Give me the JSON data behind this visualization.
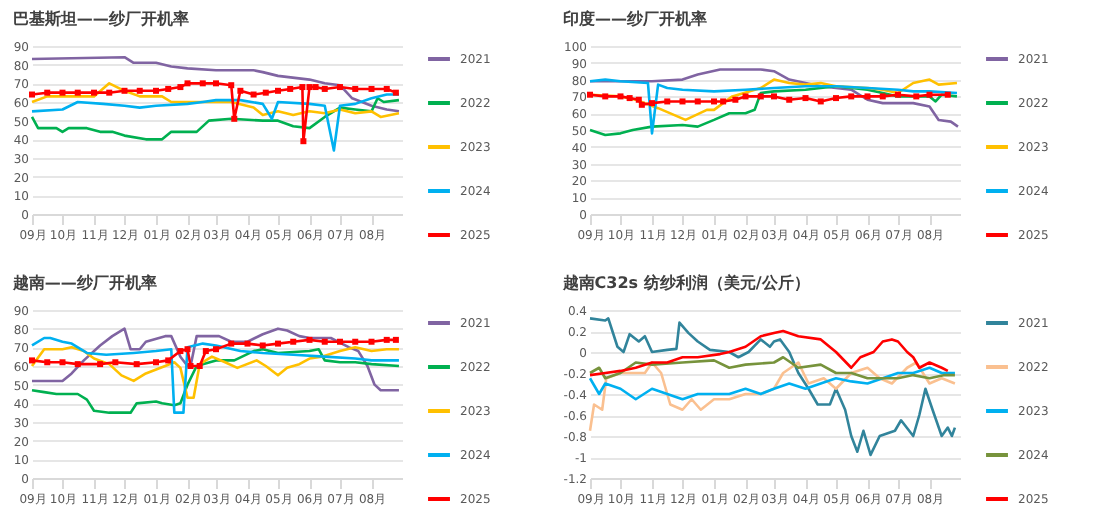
{
  "chart_data": [
    {
      "type": "line",
      "title": "巴基斯坦——纱厂开机率",
      "xlim": [
        "2024-09-01",
        "2025-08-31"
      ],
      "xticks": [
        {
          "value": "2024-09-01",
          "label": "09月"
        },
        {
          "value": "2024-10-01",
          "label": "10月"
        },
        {
          "value": "2024-11-01",
          "label": "11月"
        },
        {
          "value": "2024-12-01",
          "label": "12月"
        },
        {
          "value": "2025-01-01",
          "label": "01月"
        },
        {
          "value": "2025-02-01",
          "label": "02月"
        },
        {
          "value": "2025-03-01",
          "label": "03月"
        },
        {
          "value": "2025-04-01",
          "label": "04月"
        },
        {
          "value": "2025-05-01",
          "label": "05月"
        },
        {
          "value": "2025-06-01",
          "label": "06月"
        },
        {
          "value": "2025-07-01",
          "label": "07月"
        },
        {
          "value": "2025-08-01",
          "label": "08月"
        }
      ],
      "ylim": [
        0,
        90
      ],
      "yticks": [
        0,
        10,
        20,
        30,
        40,
        50,
        60,
        70,
        80,
        90
      ],
      "grid": "y",
      "legend": "right",
      "series": [
        {
          "name": "2021",
          "color": "#8064a2",
          "x": [
            "2024-09-01",
            "2024-12-01",
            "2024-12-10",
            "2025-01-01",
            "2025-01-16",
            "2025-02-01",
            "2025-03-01",
            "2025-04-07",
            "2025-04-16",
            "2025-05-01",
            "2025-06-01",
            "2025-06-16",
            "2025-07-01",
            "2025-07-13",
            "2025-08-01",
            "2025-08-16",
            "2025-08-28"
          ],
          "values": [
            83,
            84,
            81,
            81,
            79,
            78,
            77,
            77,
            76,
            74,
            72,
            70,
            69,
            62,
            58,
            56,
            55
          ]
        },
        {
          "name": "2022",
          "color": "#00b050",
          "x": [
            "2024-09-01",
            "2024-09-07",
            "2024-09-25",
            "2024-10-01",
            "2024-10-07",
            "2024-10-25",
            "2024-11-07",
            "2024-11-19",
            "2024-12-01",
            "2024-12-22",
            "2025-01-07",
            "2025-01-16",
            "2025-02-10",
            "2025-02-22",
            "2025-03-16",
            "2025-04-16",
            "2025-05-01",
            "2025-05-16",
            "2025-06-01",
            "2025-06-16",
            "2025-07-01",
            "2025-07-16",
            "2025-08-01",
            "2025-08-07",
            "2025-08-13",
            "2025-08-28"
          ],
          "values": [
            52,
            46,
            46,
            44,
            46,
            46,
            44,
            44,
            42,
            40,
            40,
            44,
            44,
            50,
            51,
            50,
            50,
            47,
            46,
            52,
            57,
            56,
            55,
            62,
            60,
            61
          ]
        },
        {
          "name": "2023",
          "color": "#ffc000",
          "x": [
            "2024-09-01",
            "2024-09-16",
            "2024-11-01",
            "2024-11-16",
            "2024-12-01",
            "2024-12-16",
            "2025-01-07",
            "2025-01-16",
            "2025-02-16",
            "2025-03-16",
            "2025-04-07",
            "2025-04-16",
            "2025-05-01",
            "2025-05-16",
            "2025-06-01",
            "2025-06-16",
            "2025-07-01",
            "2025-07-16",
            "2025-08-01",
            "2025-08-10",
            "2025-08-28"
          ],
          "values": [
            60,
            63,
            63,
            70,
            66,
            63,
            63,
            60,
            60,
            60,
            57,
            53,
            55,
            53,
            55,
            54,
            56,
            54,
            55,
            52,
            54
          ]
        },
        {
          "name": "2024",
          "color": "#00b0f0",
          "x": [
            "2024-09-01",
            "2024-10-01",
            "2024-10-16",
            "2024-11-10",
            "2024-12-01",
            "2024-12-16",
            "2025-01-01",
            "2025-02-01",
            "2025-02-16",
            "2025-03-01",
            "2025-03-25",
            "2025-04-16",
            "2025-04-25",
            "2025-05-01",
            "2025-06-01",
            "2025-06-16",
            "2025-06-25",
            "2025-07-01",
            "2025-07-16",
            "2025-08-01",
            "2025-08-16",
            "2025-08-28"
          ],
          "values": [
            55,
            56,
            60,
            59,
            58,
            57,
            58,
            59,
            60,
            61,
            61,
            59,
            51,
            60,
            59,
            58,
            34,
            58,
            59,
            62,
            64,
            64
          ]
        },
        {
          "name": "2025",
          "color": "#ff0000",
          "marker": "square",
          "x": [
            "2024-09-01",
            "2024-09-16",
            "2024-10-01",
            "2024-10-16",
            "2024-11-01",
            "2024-11-16",
            "2024-12-01",
            "2024-12-16",
            "2025-01-01",
            "2025-01-13",
            "2025-01-25",
            "2025-02-01",
            "2025-02-16",
            "2025-03-01",
            "2025-03-16",
            "2025-03-19",
            "2025-03-25",
            "2025-04-07",
            "2025-04-19",
            "2025-05-01",
            "2025-05-13",
            "2025-05-25",
            "2025-05-26",
            "2025-06-01",
            "2025-06-07",
            "2025-06-16",
            "2025-07-01",
            "2025-07-16",
            "2025-08-01",
            "2025-08-16",
            "2025-08-25"
          ],
          "values": [
            64,
            65,
            65,
            65,
            65,
            65,
            66,
            66,
            66,
            67,
            68,
            70,
            70,
            70,
            69,
            51,
            66,
            64,
            65,
            66,
            67,
            68,
            39,
            68,
            68,
            67,
            68,
            67,
            67,
            67,
            65
          ]
        }
      ]
    },
    {
      "type": "line",
      "title": "印度——纱厂开机率",
      "xlim": [
        "2024-09-01",
        "2025-08-31"
      ],
      "xticks": [
        {
          "value": "2024-09-01",
          "label": "09月"
        },
        {
          "value": "2024-10-01",
          "label": "10月"
        },
        {
          "value": "2024-11-01",
          "label": "11月"
        },
        {
          "value": "2024-12-01",
          "label": "12月"
        },
        {
          "value": "2025-01-01",
          "label": "01月"
        },
        {
          "value": "2025-02-01",
          "label": "02月"
        },
        {
          "value": "2025-03-01",
          "label": "03月"
        },
        {
          "value": "2025-04-01",
          "label": "04月"
        },
        {
          "value": "2025-05-01",
          "label": "05月"
        },
        {
          "value": "2025-06-01",
          "label": "06月"
        },
        {
          "value": "2025-07-01",
          "label": "07月"
        },
        {
          "value": "2025-08-01",
          "label": "08月"
        }
      ],
      "ylim": [
        0,
        100
      ],
      "yticks": [
        0,
        10,
        20,
        30,
        40,
        50,
        60,
        70,
        80,
        90,
        100
      ],
      "grid": "y",
      "legend": "right",
      "series": [
        {
          "name": "2021",
          "color": "#8064a2",
          "x": [
            "2024-09-01",
            "2024-11-01",
            "2024-12-01",
            "2024-12-16",
            "2025-01-07",
            "2025-02-16",
            "2025-03-01",
            "2025-03-16",
            "2025-04-01",
            "2025-04-16",
            "2025-05-01",
            "2025-05-16",
            "2025-06-01",
            "2025-06-16",
            "2025-07-16",
            "2025-08-01",
            "2025-08-10",
            "2025-08-22",
            "2025-08-29"
          ],
          "values": [
            79,
            79,
            80,
            83,
            86,
            86,
            85,
            80,
            78,
            76,
            75,
            74,
            68,
            66,
            66,
            64,
            56,
            55,
            52
          ]
        },
        {
          "name": "2022",
          "color": "#00b050",
          "x": [
            "2024-09-01",
            "2024-09-16",
            "2024-10-01",
            "2024-10-13",
            "2024-11-01",
            "2024-12-01",
            "2024-12-16",
            "2025-01-01",
            "2025-01-16",
            "2025-02-01",
            "2025-02-10",
            "2025-02-16",
            "2025-03-01",
            "2025-04-01",
            "2025-05-01",
            "2025-06-01",
            "2025-06-16",
            "2025-07-01",
            "2025-07-16",
            "2025-08-01",
            "2025-08-07",
            "2025-08-13",
            "2025-08-28"
          ],
          "values": [
            50,
            47,
            48,
            50,
            52,
            53,
            52,
            56,
            60,
            60,
            62,
            72,
            73,
            74,
            76,
            74,
            72,
            70,
            70,
            70,
            67,
            71,
            70
          ]
        },
        {
          "name": "2023",
          "color": "#ffc000",
          "x": [
            "2024-09-01",
            "2024-10-01",
            "2024-10-16",
            "2024-11-07",
            "2024-12-04",
            "2024-12-25",
            "2025-01-01",
            "2025-01-10",
            "2025-01-19",
            "2025-02-16",
            "2025-03-01",
            "2025-03-16",
            "2025-04-01",
            "2025-04-16",
            "2025-05-01",
            "2025-06-01",
            "2025-06-16",
            "2025-07-01",
            "2025-07-16",
            "2025-08-01",
            "2025-08-10",
            "2025-08-28"
          ],
          "values": [
            71,
            70,
            68,
            63,
            56,
            62,
            62,
            66,
            70,
            75,
            80,
            78,
            77,
            78,
            76,
            75,
            74,
            72,
            78,
            80,
            77,
            78
          ]
        },
        {
          "name": "2024",
          "color": "#00b0f0",
          "x": [
            "2024-09-01",
            "2024-09-16",
            "2024-10-01",
            "2024-10-28",
            "2024-11-01",
            "2024-11-07",
            "2024-11-16",
            "2024-12-01",
            "2025-01-01",
            "2025-02-01",
            "2025-03-01",
            "2025-04-01",
            "2025-05-01",
            "2025-06-01",
            "2025-07-01",
            "2025-07-16",
            "2025-08-01",
            "2025-08-28"
          ],
          "values": [
            79,
            80,
            79,
            78,
            48,
            77,
            75,
            74,
            73,
            74,
            75,
            76,
            76,
            75,
            74,
            73,
            73,
            72
          ]
        },
        {
          "name": "2025",
          "color": "#ff0000",
          "marker": "square",
          "x": [
            "2024-09-01",
            "2024-09-16",
            "2024-10-01",
            "2024-10-10",
            "2024-10-19",
            "2024-10-22",
            "2024-11-01",
            "2024-11-16",
            "2024-12-01",
            "2024-12-16",
            "2025-01-01",
            "2025-01-10",
            "2025-01-22",
            "2025-02-01",
            "2025-02-16",
            "2025-03-01",
            "2025-03-16",
            "2025-04-01",
            "2025-04-16",
            "2025-05-01",
            "2025-05-16",
            "2025-06-01",
            "2025-06-16",
            "2025-07-01",
            "2025-07-19",
            "2025-08-01",
            "2025-08-19"
          ],
          "values": [
            71,
            70,
            70,
            69,
            68,
            65,
            66,
            67,
            67,
            67,
            67,
            67,
            68,
            70,
            70,
            70,
            68,
            69,
            67,
            69,
            70,
            70,
            70,
            71,
            70,
            71,
            71
          ]
        }
      ]
    },
    {
      "type": "line",
      "title": "越南——纱厂开机率",
      "xlim": [
        "2024-09-01",
        "2025-08-31"
      ],
      "xticks": [
        {
          "value": "2024-09-01",
          "label": "09月"
        },
        {
          "value": "2024-10-01",
          "label": "10月"
        },
        {
          "value": "2024-11-01",
          "label": "11月"
        },
        {
          "value": "2024-12-01",
          "label": "12月"
        },
        {
          "value": "2025-01-01",
          "label": "01月"
        },
        {
          "value": "2025-02-01",
          "label": "02月"
        },
        {
          "value": "2025-03-01",
          "label": "03月"
        },
        {
          "value": "2025-04-01",
          "label": "04月"
        },
        {
          "value": "2025-05-01",
          "label": "05月"
        },
        {
          "value": "2025-06-01",
          "label": "06月"
        },
        {
          "value": "2025-07-01",
          "label": "07月"
        },
        {
          "value": "2025-08-01",
          "label": "08月"
        }
      ],
      "ylim": [
        0,
        90
      ],
      "yticks": [
        0,
        10,
        20,
        30,
        40,
        50,
        60,
        70,
        80,
        90
      ],
      "grid": "y",
      "legend": "right",
      "series": [
        {
          "name": "2021",
          "color": "#8064a2",
          "x": [
            "2024-09-01",
            "2024-10-01",
            "2024-10-10",
            "2024-10-22",
            "2024-11-07",
            "2024-11-19",
            "2024-12-01",
            "2024-12-07",
            "2024-12-16",
            "2024-12-22",
            "2025-01-10",
            "2025-01-16",
            "2025-01-25",
            "2025-02-01",
            "2025-02-04",
            "2025-02-10",
            "2025-03-04",
            "2025-03-16",
            "2025-04-01",
            "2025-04-16",
            "2025-05-01",
            "2025-05-10",
            "2025-05-22",
            "2025-06-01",
            "2025-06-22",
            "2025-07-10",
            "2025-07-19",
            "2025-07-28",
            "2025-08-04",
            "2025-08-10",
            "2025-08-28"
          ],
          "values": [
            52,
            52,
            56,
            63,
            71,
            76,
            80,
            69,
            69,
            73,
            76,
            76,
            65,
            60,
            60,
            76,
            76,
            73,
            73,
            77,
            80,
            79,
            76,
            75,
            75,
            70,
            68,
            60,
            50,
            47,
            47
          ]
        },
        {
          "name": "2022",
          "color": "#00b050",
          "x": [
            "2024-09-01",
            "2024-09-13",
            "2024-09-25",
            "2024-10-16",
            "2024-10-25",
            "2024-11-01",
            "2024-11-16",
            "2024-12-07",
            "2024-12-13",
            "2025-01-01",
            "2025-01-07",
            "2025-01-19",
            "2025-01-25",
            "2025-02-01",
            "2025-02-10",
            "2025-03-01",
            "2025-03-19",
            "2025-04-07",
            "2025-04-16",
            "2025-05-01",
            "2025-06-01",
            "2025-06-10",
            "2025-06-16",
            "2025-07-01",
            "2025-07-16",
            "2025-08-01",
            "2025-08-28"
          ],
          "values": [
            47,
            46,
            45,
            45,
            42,
            36,
            35,
            35,
            40,
            41,
            40,
            39,
            40,
            50,
            60,
            63,
            63,
            68,
            69,
            67,
            68,
            69,
            63,
            62,
            62,
            61,
            60
          ]
        },
        {
          "name": "2023",
          "color": "#ffc000",
          "x": [
            "2024-09-01",
            "2024-09-13",
            "2024-10-01",
            "2024-10-10",
            "2024-10-22",
            "2024-11-01",
            "2024-11-16",
            "2024-11-28",
            "2024-12-10",
            "2024-12-22",
            "2025-01-10",
            "2025-01-19",
            "2025-01-25",
            "2025-02-01",
            "2025-02-07",
            "2025-02-13",
            "2025-02-25",
            "2025-03-10",
            "2025-03-22",
            "2025-04-10",
            "2025-04-19",
            "2025-05-01",
            "2025-05-10",
            "2025-05-22",
            "2025-06-01",
            "2025-06-13",
            "2025-07-01",
            "2025-07-16",
            "2025-08-01",
            "2025-08-16",
            "2025-08-28"
          ],
          "values": [
            60,
            69,
            69,
            70,
            68,
            64,
            61,
            55,
            52,
            56,
            60,
            62,
            59,
            43,
            43,
            61,
            65,
            62,
            59,
            63,
            60,
            55,
            59,
            61,
            64,
            65,
            68,
            70,
            68,
            69,
            69
          ]
        },
        {
          "name": "2024",
          "color": "#00b0f0",
          "x": [
            "2024-09-01",
            "2024-09-13",
            "2024-09-19",
            "2024-10-01",
            "2024-10-10",
            "2024-10-25",
            "2024-11-13",
            "2024-12-10",
            "2025-01-01",
            "2025-01-16",
            "2025-01-19",
            "2025-01-28",
            "2025-02-01",
            "2025-02-16",
            "2025-03-01",
            "2025-03-25",
            "2025-04-16",
            "2025-05-16",
            "2025-06-16",
            "2025-07-16",
            "2025-08-01",
            "2025-08-28"
          ],
          "values": [
            71,
            75,
            75,
            73,
            72,
            67,
            66,
            67,
            68,
            69,
            35,
            35,
            70,
            72,
            71,
            68,
            67,
            66,
            65,
            64,
            63,
            63
          ]
        },
        {
          "name": "2025",
          "color": "#ff0000",
          "marker": "square",
          "x": [
            "2024-09-01",
            "2024-09-16",
            "2024-10-01",
            "2024-10-16",
            "2024-11-07",
            "2024-11-22",
            "2024-12-13",
            "2025-01-01",
            "2025-01-13",
            "2025-01-25",
            "2025-02-01",
            "2025-02-04",
            "2025-02-13",
            "2025-02-19",
            "2025-03-01",
            "2025-03-16",
            "2025-04-01",
            "2025-04-16",
            "2025-05-01",
            "2025-05-16",
            "2025-06-01",
            "2025-06-16",
            "2025-07-01",
            "2025-07-16",
            "2025-08-01",
            "2025-08-16",
            "2025-08-25"
          ],
          "values": [
            63,
            62,
            62,
            61,
            61,
            62,
            61,
            62,
            63,
            68,
            69,
            60,
            60,
            68,
            69,
            72,
            72,
            71,
            72,
            73,
            74,
            73,
            73,
            73,
            73,
            74,
            74
          ]
        }
      ]
    },
    {
      "type": "line",
      "title": "越南C32s 纺纱利润（美元/公斤）",
      "xlim": [
        "2024-09-01",
        "2025-08-31"
      ],
      "xticks": [
        {
          "value": "2024-09-01",
          "label": "09月"
        },
        {
          "value": "2024-10-01",
          "label": "10月"
        },
        {
          "value": "2024-11-01",
          "label": "11月"
        },
        {
          "value": "2024-12-01",
          "label": "12月"
        },
        {
          "value": "2025-01-01",
          "label": "01月"
        },
        {
          "value": "2025-02-01",
          "label": "02月"
        },
        {
          "value": "2025-03-01",
          "label": "03月"
        },
        {
          "value": "2025-04-01",
          "label": "04月"
        },
        {
          "value": "2025-05-01",
          "label": "05月"
        },
        {
          "value": "2025-06-01",
          "label": "06月"
        },
        {
          "value": "2025-07-01",
          "label": "07月"
        },
        {
          "value": "2025-08-01",
          "label": "08月"
        }
      ],
      "ylim": [
        -1.2,
        0.4
      ],
      "yticks": [
        -1.2,
        -1,
        -0.8,
        -0.6,
        -0.4,
        -0.2,
        0,
        0.2,
        0.4
      ],
      "grid": "y",
      "legend": "right",
      "series": [
        {
          "name": "2021",
          "color": "#31849b",
          "x": [
            "2024-09-01",
            "2024-09-16",
            "2024-09-19",
            "2024-09-23",
            "2024-09-28",
            "2024-10-04",
            "2024-10-10",
            "2024-10-19",
            "2024-10-25",
            "2024-11-01",
            "2024-11-16",
            "2024-11-25",
            "2024-11-28",
            "2024-12-07",
            "2024-12-16",
            "2024-12-28",
            "2025-01-16",
            "2025-01-25",
            "2025-02-04",
            "2025-02-16",
            "2025-02-25",
            "2025-03-01",
            "2025-03-07",
            "2025-03-16",
            "2025-03-25",
            "2025-04-04",
            "2025-04-13",
            "2025-04-25",
            "2025-05-01",
            "2025-05-10",
            "2025-05-16",
            "2025-05-22",
            "2025-05-28",
            "2025-06-04",
            "2025-06-13",
            "2025-06-28",
            "2025-07-04",
            "2025-07-16",
            "2025-07-22",
            "2025-07-28",
            "2025-08-04",
            "2025-08-13",
            "2025-08-19",
            "2025-08-23",
            "2025-08-26"
          ],
          "values": [
            0.32,
            0.3,
            0.32,
            0.2,
            0.05,
            0,
            0.17,
            0.1,
            0.15,
            0,
            0.02,
            0.03,
            0.28,
            0.18,
            0.1,
            0.02,
            0,
            -0.05,
            0,
            0.12,
            0.05,
            0.1,
            0.12,
            0,
            -0.2,
            -0.35,
            -0.5,
            -0.5,
            -0.35,
            -0.55,
            -0.8,
            -0.95,
            -0.75,
            -0.98,
            -0.8,
            -0.75,
            -0.65,
            -0.8,
            -0.6,
            -0.35,
            -0.55,
            -0.8,
            -0.72,
            -0.8,
            -0.72
          ]
        },
        {
          "name": "2022",
          "color": "#fac090",
          "x": [
            "2024-09-01",
            "2024-09-05",
            "2024-09-13",
            "2024-09-17",
            "2024-10-01",
            "2024-10-25",
            "2024-11-01",
            "2024-11-10",
            "2024-11-19",
            "2024-12-01",
            "2024-12-10",
            "2024-12-19",
            "2025-01-01",
            "2025-01-16",
            "2025-02-01",
            "2025-02-16",
            "2025-03-01",
            "2025-03-10",
            "2025-03-25",
            "2025-04-04",
            "2025-04-19",
            "2025-05-01",
            "2025-05-16",
            "2025-06-01",
            "2025-06-13",
            "2025-06-25",
            "2025-07-10",
            "2025-07-19",
            "2025-08-01",
            "2025-08-13",
            "2025-08-26"
          ],
          "values": [
            -0.75,
            -0.5,
            -0.55,
            -0.25,
            -0.2,
            -0.2,
            -0.1,
            -0.2,
            -0.5,
            -0.55,
            -0.45,
            -0.55,
            -0.45,
            -0.45,
            -0.4,
            -0.4,
            -0.35,
            -0.2,
            -0.1,
            -0.3,
            -0.25,
            -0.35,
            -0.2,
            -0.15,
            -0.25,
            -0.3,
            -0.15,
            -0.1,
            -0.3,
            -0.25,
            -0.3
          ]
        },
        {
          "name": "2023",
          "color": "#00b0f0",
          "x": [
            "2024-09-01",
            "2024-09-10",
            "2024-09-16",
            "2024-10-01",
            "2024-10-16",
            "2024-11-01",
            "2024-11-16",
            "2024-12-01",
            "2024-12-16",
            "2025-01-01",
            "2025-01-16",
            "2025-02-01",
            "2025-02-16",
            "2025-03-01",
            "2025-03-16",
            "2025-04-01",
            "2025-04-16",
            "2025-05-01",
            "2025-05-16",
            "2025-06-01",
            "2025-06-16",
            "2025-07-01",
            "2025-07-16",
            "2025-08-01",
            "2025-08-13",
            "2025-08-26"
          ],
          "values": [
            -0.25,
            -0.4,
            -0.3,
            -0.35,
            -0.45,
            -0.35,
            -0.4,
            -0.45,
            -0.4,
            -0.4,
            -0.4,
            -0.35,
            -0.4,
            -0.35,
            -0.3,
            -0.35,
            -0.3,
            -0.25,
            -0.28,
            -0.3,
            -0.25,
            -0.2,
            -0.2,
            -0.15,
            -0.2,
            -0.2
          ]
        },
        {
          "name": "2024",
          "color": "#77933c",
          "x": [
            "2024-09-01",
            "2024-09-10",
            "2024-09-16",
            "2024-10-01",
            "2024-10-16",
            "2024-11-01",
            "2024-12-01",
            "2025-01-01",
            "2025-01-16",
            "2025-02-01",
            "2025-03-01",
            "2025-03-10",
            "2025-03-25",
            "2025-04-16",
            "2025-05-01",
            "2025-05-16",
            "2025-06-01",
            "2025-07-01",
            "2025-07-16",
            "2025-08-01",
            "2025-08-16",
            "2025-08-26"
          ],
          "values": [
            -0.2,
            -0.15,
            -0.25,
            -0.2,
            -0.1,
            -0.12,
            -0.1,
            -0.08,
            -0.15,
            -0.12,
            -0.1,
            -0.05,
            -0.15,
            -0.12,
            -0.2,
            -0.2,
            -0.25,
            -0.25,
            -0.22,
            -0.25,
            -0.22,
            -0.22
          ]
        },
        {
          "name": "2025",
          "color": "#ff0000",
          "x": [
            "2024-09-01",
            "2024-09-16",
            "2024-10-01",
            "2024-10-16",
            "2024-11-01",
            "2024-11-16",
            "2024-12-01",
            "2024-12-16",
            "2025-01-07",
            "2025-01-16",
            "2025-02-01",
            "2025-02-16",
            "2025-03-01",
            "2025-03-10",
            "2025-03-25",
            "2025-04-16",
            "2025-05-01",
            "2025-05-16",
            "2025-05-25",
            "2025-06-07",
            "2025-06-16",
            "2025-06-25",
            "2025-07-01",
            "2025-07-10",
            "2025-07-16",
            "2025-07-22",
            "2025-08-01",
            "2025-08-13",
            "2025-08-19"
          ],
          "values": [
            -0.22,
            -0.2,
            -0.18,
            -0.15,
            -0.1,
            -0.1,
            -0.05,
            -0.05,
            -0.02,
            0,
            0.05,
            0.15,
            0.18,
            0.2,
            0.15,
            0.12,
            0,
            -0.15,
            -0.05,
            0,
            0.1,
            0.12,
            0.1,
            0,
            -0.05,
            -0.15,
            -0.1,
            -0.15,
            -0.18
          ]
        }
      ]
    }
  ]
}
